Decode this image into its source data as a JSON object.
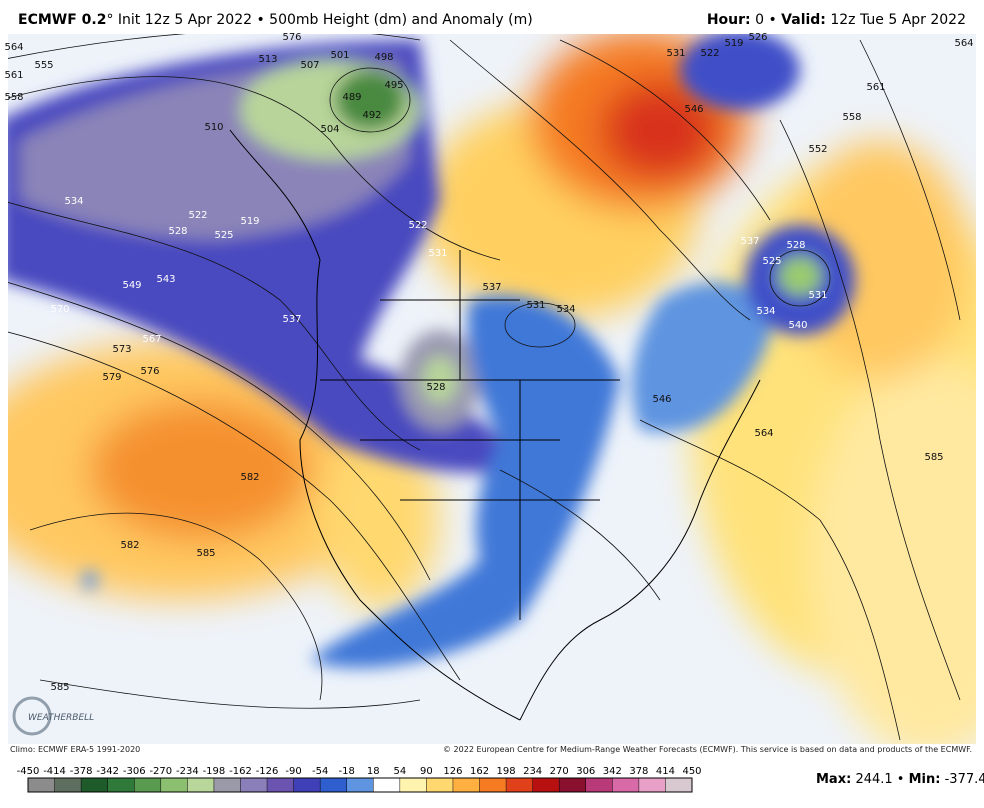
{
  "header": {
    "model": "ECMWF 0.2",
    "init": "° Init 12z 5 Apr 2022 • 500mb Height (dm) and Anomaly (m)",
    "hour_label": "Hour:",
    "hour": "0 •",
    "valid_label": "Valid:",
    "valid": "12z Tue 5 Apr 2022"
  },
  "contour_labels": [
    564,
    561,
    558,
    555,
    576,
    513,
    507,
    501,
    498,
    495,
    489,
    492,
    504,
    510,
    534,
    522,
    519,
    528,
    525,
    549,
    543,
    570,
    567,
    573,
    576,
    579,
    537,
    528,
    522,
    531,
    537,
    531,
    534,
    546,
    531,
    522,
    519,
    526,
    564,
    561,
    558,
    552,
    537,
    528,
    525,
    531,
    534,
    540,
    546,
    564,
    585,
    582,
    582,
    585,
    585
  ],
  "logo": "WEATHERBELL",
  "footer": {
    "climo": "Climo: ECMWF ERA-5 1991-2020",
    "copyright": "© 2022 European Centre for Medium-Range Weather Forecasts (ECMWF). This service is based on data and products of the ECMWF."
  },
  "colorbar": {
    "ticks": [
      -450,
      -414,
      -378,
      -342,
      -306,
      -270,
      -234,
      -198,
      -162,
      -126,
      -90,
      -54,
      -18,
      18,
      54,
      90,
      126,
      162,
      198,
      234,
      270,
      306,
      342,
      378,
      414,
      450
    ],
    "colors": [
      "#8c8c8c",
      "#5f6f5f",
      "#1f5a2a",
      "#2f7a3a",
      "#5a9a50",
      "#8cbf70",
      "#b9d79a",
      "#9a9aa8",
      "#8a7fb8",
      "#6a54b0",
      "#3f3fb8",
      "#2f5fcf",
      "#5f94e0",
      "#ffffff",
      "#fff3b0",
      "#ffd870",
      "#ffb040",
      "#f57a22",
      "#e0401a",
      "#b81010",
      "#8a1030",
      "#b83a78",
      "#d86aa8",
      "#e8a0c8",
      "#d8c8d0"
    ]
  },
  "stats": {
    "max_label": "Max:",
    "max": 244.1,
    "sep": "•",
    "min_label": "Min:",
    "min": -377.4
  }
}
